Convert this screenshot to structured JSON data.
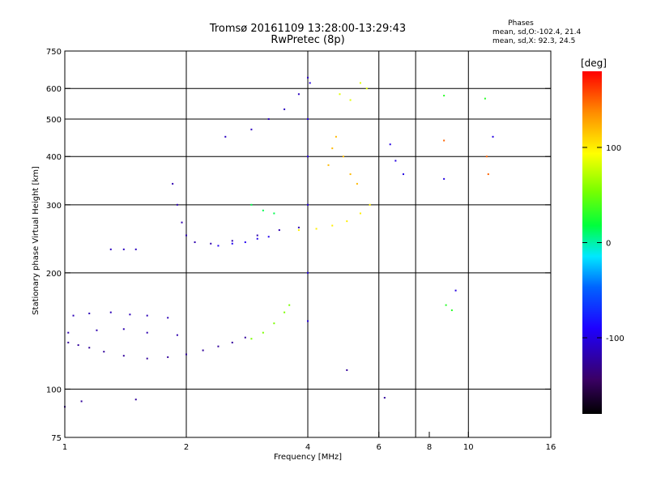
{
  "chart_data": {
    "type": "scatter",
    "title": "Tromsø 20161109 13:28:00-13:29:43",
    "subtitle": "RwPretec (8p)",
    "xlabel": "Frequency [MHz]",
    "ylabel": "Stationary phase Virtual Height [km]",
    "x_scale": "log",
    "y_scale": "log",
    "xlim": [
      1,
      16
    ],
    "ylim": [
      75,
      750
    ],
    "x_ticks": [
      1,
      2,
      4,
      6,
      8,
      10,
      16
    ],
    "x_tick_labels": [
      "1",
      "2",
      "4",
      "6",
      "8",
      "10",
      "16"
    ],
    "x_grid": [
      2,
      4,
      6,
      7.4,
      10
    ],
    "y_ticks": [
      75,
      100,
      200,
      300,
      400,
      500,
      600,
      750
    ],
    "y_tick_labels": [
      "75",
      "100",
      "200",
      "300",
      "400",
      "500",
      "600",
      "750"
    ],
    "y_grid": [
      100,
      200,
      300,
      400,
      500,
      600
    ],
    "grid": true,
    "legend": {
      "title": "Phases",
      "lines": [
        "mean, sd,O:-102.4, 21.4",
        "mean, sd,X: 92.3, 24.5"
      ]
    },
    "colorbar": {
      "label": "[deg]",
      "range": [
        -180,
        180
      ],
      "ticks": [
        100,
        0,
        -100
      ],
      "tick_labels": [
        "100",
        "0",
        "-100"
      ],
      "colormap": "rainbow"
    },
    "color_variable": "phase [deg]",
    "traces": [
      {
        "phase": -125,
        "points": [
          [
            1.02,
            132
          ],
          [
            1.08,
            130
          ],
          [
            1.15,
            128
          ],
          [
            1.25,
            125
          ],
          [
            1.4,
            122
          ],
          [
            1.6,
            120
          ],
          [
            1.8,
            121
          ],
          [
            2.0,
            123
          ],
          [
            2.2,
            126
          ],
          [
            2.4,
            129
          ],
          [
            2.6,
            132
          ],
          [
            2.8,
            136
          ]
        ]
      },
      {
        "phase": -115,
        "points": [
          [
            1.05,
            155
          ],
          [
            1.15,
            157
          ],
          [
            1.3,
            158
          ],
          [
            1.45,
            156
          ],
          [
            1.6,
            155
          ],
          [
            1.8,
            153
          ]
        ]
      },
      {
        "phase": -118,
        "points": [
          [
            1.02,
            140
          ],
          [
            1.2,
            142
          ],
          [
            1.4,
            143
          ],
          [
            1.6,
            140
          ],
          [
            1.9,
            138
          ]
        ]
      },
      {
        "phase": -112,
        "points": [
          [
            1.3,
            230
          ],
          [
            1.4,
            230
          ],
          [
            1.5,
            230
          ]
        ]
      },
      {
        "phase": -118,
        "points": [
          [
            1.85,
            340
          ],
          [
            1.9,
            300
          ],
          [
            1.95,
            270
          ],
          [
            2.0,
            250
          ],
          [
            2.1,
            240
          ],
          [
            2.3,
            238
          ],
          [
            2.6,
            242
          ],
          [
            3.0,
            250
          ],
          [
            3.4,
            258
          ],
          [
            3.8,
            262
          ]
        ]
      },
      {
        "phase": -95,
        "points": [
          [
            2.4,
            235
          ],
          [
            2.6,
            238
          ],
          [
            2.8,
            240
          ],
          [
            3.0,
            245
          ],
          [
            3.2,
            248
          ]
        ]
      },
      {
        "phase": -112,
        "points": [
          [
            2.5,
            450
          ],
          [
            2.9,
            470
          ],
          [
            3.2,
            500
          ],
          [
            3.5,
            530
          ],
          [
            3.8,
            580
          ],
          [
            4.0,
            640
          ]
        ]
      },
      {
        "phase": -102,
        "points": [
          [
            4.0,
            150
          ],
          [
            4.0,
            200
          ],
          [
            4.0,
            300
          ],
          [
            4.0,
            400
          ],
          [
            4.0,
            500
          ],
          [
            4.05,
            620
          ]
        ]
      },
      {
        "phase": 15,
        "points": [
          [
            2.9,
            300
          ],
          [
            3.1,
            290
          ],
          [
            3.3,
            285
          ]
        ]
      },
      {
        "phase": 55,
        "points": [
          [
            2.9,
            135
          ],
          [
            3.1,
            140
          ],
          [
            3.3,
            148
          ],
          [
            3.5,
            158
          ],
          [
            3.6,
            165
          ]
        ]
      },
      {
        "phase": 100,
        "points": [
          [
            3.8,
            258
          ],
          [
            4.2,
            260
          ],
          [
            4.6,
            265
          ],
          [
            5.0,
            272
          ],
          [
            5.4,
            285
          ],
          [
            5.7,
            300
          ]
        ]
      },
      {
        "phase": 120,
        "points": [
          [
            4.5,
            380
          ],
          [
            4.6,
            420
          ],
          [
            4.7,
            450
          ],
          [
            4.9,
            400
          ],
          [
            5.1,
            360
          ],
          [
            5.3,
            340
          ]
        ]
      },
      {
        "phase": 85,
        "points": [
          [
            4.8,
            580
          ],
          [
            5.1,
            560
          ],
          [
            5.4,
            620
          ],
          [
            5.6,
            600
          ]
        ]
      },
      {
        "phase": -100,
        "points": [
          [
            6.4,
            430
          ],
          [
            6.6,
            390
          ],
          [
            6.9,
            360
          ],
          [
            8.7,
            350
          ],
          [
            9.3,
            180
          ],
          [
            11.5,
            450
          ]
        ]
      },
      {
        "phase": 150,
        "points": [
          [
            8.7,
            440
          ],
          [
            11.2,
            360
          ],
          [
            11.1,
            400
          ]
        ]
      },
      {
        "phase": 30,
        "points": [
          [
            8.7,
            575
          ],
          [
            11.0,
            565
          ],
          [
            8.8,
            165
          ],
          [
            9.1,
            160
          ]
        ]
      },
      {
        "phase": -125,
        "points": [
          [
            1.0,
            90
          ],
          [
            1.1,
            93
          ],
          [
            1.5,
            94
          ],
          [
            5.0,
            112
          ],
          [
            6.2,
            95
          ]
        ]
      }
    ]
  }
}
